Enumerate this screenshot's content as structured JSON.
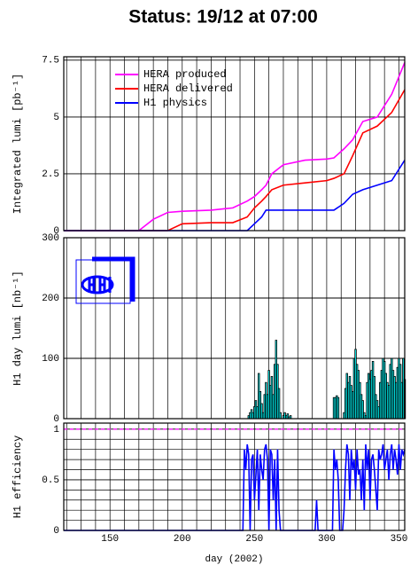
{
  "chart_data": [
    {
      "type": "line",
      "title": "Status: 19/12 at 07:00",
      "ylabel": "Integrated lumi [pb⁻¹]",
      "xlim": [
        118,
        354
      ],
      "xgrid": [
        120,
        130,
        140,
        150,
        160,
        170,
        180,
        190,
        200,
        210,
        220,
        230,
        240,
        250,
        260,
        270,
        280,
        290,
        300,
        310,
        320,
        330,
        340,
        350
      ],
      "ylim": [
        0,
        7.65
      ],
      "yticks": [
        0,
        2.5,
        5,
        7.5
      ],
      "grid": true,
      "legend": "upper left",
      "x": [
        118,
        170,
        180,
        190,
        200,
        220,
        235,
        245,
        250,
        255,
        258,
        262,
        270,
        285,
        300,
        305,
        312,
        318,
        325,
        335,
        345,
        354
      ],
      "series": [
        {
          "name": "HERA produced",
          "color": "#ff00ff",
          "values": [
            0,
            0,
            0.5,
            0.8,
            0.85,
            0.9,
            1.0,
            1.3,
            1.5,
            1.8,
            2.0,
            2.5,
            2.9,
            3.1,
            3.15,
            3.2,
            3.6,
            4.0,
            4.8,
            5.0,
            6.0,
            7.4
          ]
        },
        {
          "name": "HERA delivered",
          "color": "#ff0000",
          "values": [
            0,
            0,
            0,
            0,
            0.3,
            0.35,
            0.35,
            0.6,
            1.0,
            1.3,
            1.5,
            1.8,
            2.0,
            2.1,
            2.2,
            2.3,
            2.5,
            3.3,
            4.3,
            4.6,
            5.2,
            6.2
          ]
        },
        {
          "name": "H1 physics",
          "color": "#0000ff",
          "values": [
            0,
            0,
            0,
            0,
            0,
            0,
            0,
            0,
            0.3,
            0.6,
            0.9,
            0.9,
            0.9,
            0.9,
            0.9,
            0.9,
            1.2,
            1.6,
            1.8,
            2.0,
            2.2,
            3.1
          ]
        }
      ]
    },
    {
      "type": "bar",
      "ylabel": "H1 day lumi [nb⁻¹]",
      "xlim": [
        118,
        354
      ],
      "ylim": [
        0,
        300
      ],
      "yticks": [
        0,
        100,
        200,
        300
      ],
      "grid": true,
      "color": "#00ffff",
      "x": [
        246,
        247,
        248,
        249,
        250,
        251,
        252,
        253,
        254,
        255,
        256,
        257,
        258,
        259,
        260,
        261,
        262,
        263,
        264,
        265,
        266,
        267,
        268,
        269,
        270,
        271,
        272,
        273,
        274,
        275,
        305,
        306,
        307,
        308,
        309,
        310,
        311,
        312,
        313,
        314,
        315,
        316,
        317,
        318,
        319,
        320,
        321,
        322,
        323,
        324,
        325,
        326,
        327,
        328,
        329,
        330,
        331,
        332,
        333,
        334,
        335,
        336,
        337,
        338,
        339,
        340,
        341,
        342,
        343,
        344,
        345,
        346,
        347,
        348,
        349,
        350,
        351,
        352,
        353,
        354
      ],
      "values": [
        5,
        10,
        15,
        10,
        20,
        30,
        20,
        75,
        45,
        25,
        10,
        40,
        60,
        40,
        80,
        55,
        70,
        40,
        90,
        130,
        90,
        50,
        10,
        0,
        5,
        10,
        5,
        8,
        3,
        5,
        35,
        35,
        38,
        35,
        0,
        0,
        0,
        10,
        50,
        75,
        60,
        70,
        55,
        45,
        100,
        115,
        90,
        80,
        60,
        40,
        30,
        10,
        5,
        60,
        75,
        65,
        80,
        95,
        70,
        40,
        30,
        20,
        60,
        80,
        100,
        95,
        75,
        60,
        55,
        90,
        100,
        80,
        70,
        60,
        85,
        100,
        90,
        60,
        100,
        65
      ]
    },
    {
      "type": "line",
      "ylabel": "H1 efficiency",
      "xlabel": "day (2002)",
      "xlim": [
        118,
        354
      ],
      "xticks": [
        150,
        200,
        250,
        300,
        350
      ],
      "ylim": [
        0,
        1.06
      ],
      "yticks": [
        0,
        0.5,
        1
      ],
      "ygrid": [
        0.1,
        0.2,
        0.3,
        0.4,
        0.6,
        0.7,
        0.8,
        0.9
      ],
      "reference_line": 1,
      "grid": true,
      "x": [
        118,
        242,
        243,
        244,
        245,
        246,
        247,
        248,
        249,
        250,
        251,
        252,
        253,
        254,
        255,
        256,
        257,
        258,
        259,
        260,
        261,
        262,
        263,
        264,
        265,
        266,
        267,
        268,
        269,
        270,
        271,
        272,
        292,
        293,
        294,
        300,
        303,
        304,
        305,
        306,
        307,
        308,
        309,
        310,
        311,
        312,
        313,
        314,
        315,
        316,
        317,
        318,
        319,
        320,
        321,
        322,
        323,
        324,
        325,
        326,
        327,
        328,
        329,
        330,
        331,
        332,
        333,
        334,
        335,
        336,
        337,
        338,
        339,
        340,
        341,
        342,
        343,
        344,
        345,
        346,
        347,
        348,
        349,
        350,
        351,
        352,
        353,
        354
      ],
      "series": [
        {
          "name": "H1 efficiency",
          "color": "#0000ff",
          "values": [
            0,
            0,
            0.8,
            0.6,
            0.85,
            0.75,
            0,
            0.7,
            0.75,
            0.3,
            0.55,
            0.8,
            0.2,
            0.75,
            0.6,
            0.5,
            0.8,
            0.85,
            0.7,
            0,
            0.8,
            0.75,
            0.3,
            0.7,
            0,
            0.8,
            0.2,
            0,
            0,
            0,
            0,
            0,
            0,
            0.3,
            0,
            0,
            0,
            0,
            0.8,
            0.6,
            0.7,
            0.5,
            0,
            0,
            0,
            0.2,
            0.6,
            0.85,
            0.75,
            0.3,
            0.8,
            0.6,
            0.7,
            0.4,
            0.8,
            0.55,
            0.6,
            0.3,
            0.7,
            0.2,
            0.85,
            0.6,
            0.8,
            0.3,
            0.7,
            0.75,
            0.6,
            0.4,
            0.2,
            0.8,
            0.7,
            0.75,
            0.85,
            0.6,
            0.7,
            0.8,
            0.5,
            0.75,
            0.85,
            0.6,
            0.8,
            0.7,
            0.55,
            0.85,
            0.6,
            0.8,
            0.75,
            0.8
          ]
        }
      ]
    }
  ]
}
